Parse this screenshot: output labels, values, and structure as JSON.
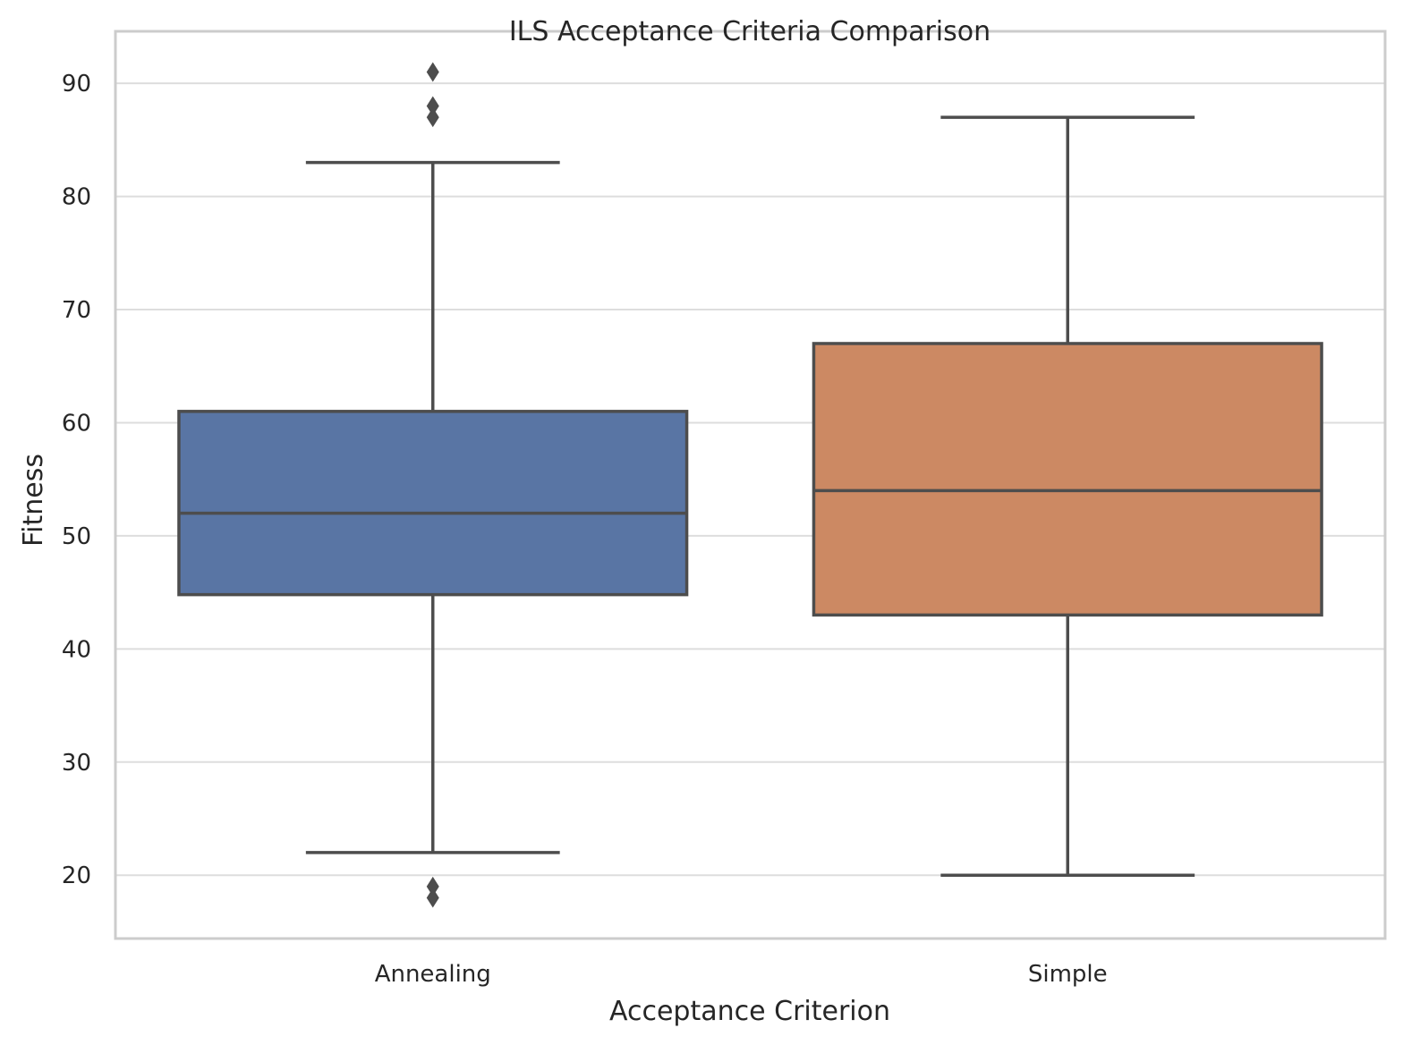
{
  "chart_data": {
    "type": "box",
    "title": "ILS Acceptance Criteria Comparison",
    "xlabel": "Acceptance Criterion",
    "ylabel": "Fitness",
    "ylim": [
      14.4,
      94.6
    ],
    "yticks": [
      20,
      30,
      40,
      50,
      60,
      70,
      80,
      90
    ],
    "grid": "horizontal",
    "categories": [
      "Annealing",
      "Simple"
    ],
    "boxes": [
      {
        "category": "Annealing",
        "whisker_low": 22,
        "q1": 44.8,
        "median": 52,
        "q3": 61,
        "whisker_high": 83,
        "outliers": [
          91,
          88,
          87,
          19,
          18
        ],
        "color": "#5975a4"
      },
      {
        "category": "Simple",
        "whisker_low": 20,
        "q1": 43,
        "median": 54,
        "q3": 67,
        "whisker_high": 87,
        "outliers": [],
        "color": "#cc8963"
      }
    ],
    "line_color": "#4d4d4d",
    "grid_color": "#dddddd",
    "spine_color": "#cccccc"
  }
}
